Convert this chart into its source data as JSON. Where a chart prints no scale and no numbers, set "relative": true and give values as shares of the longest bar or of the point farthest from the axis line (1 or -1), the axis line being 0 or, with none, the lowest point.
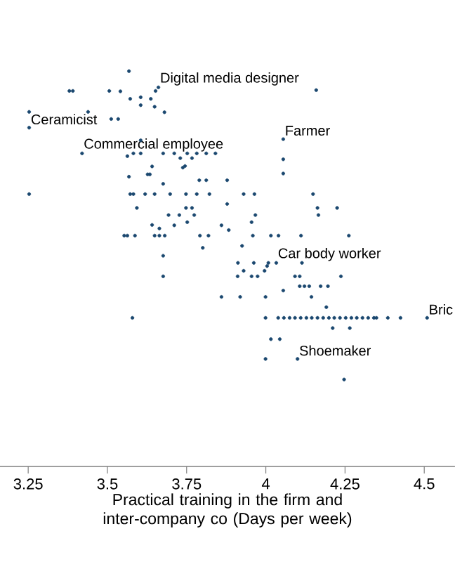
{
  "chart_data": {
    "type": "scatter",
    "relative": true,
    "xlabel": "Practical training in the firm and inter-company co (Days per week)",
    "xlim": [
      3.161,
      4.597
    ],
    "xticks": [
      3.25,
      3.5,
      3.75,
      4,
      4.25,
      4.5
    ],
    "color": "#1a476f",
    "marker": "circle",
    "x": [
      3.568,
      3.38,
      3.391,
      3.506,
      3.541,
      3.572,
      3.605,
      3.637,
      3.652,
      3.661,
      3.605,
      3.649,
      3.68,
      4.159,
      3.253,
      3.253,
      3.439,
      3.512,
      3.534,
      4.055,
      3.42,
      3.605,
      3.563,
      3.582,
      3.605,
      3.676,
      3.711,
      3.73,
      3.752,
      3.767,
      3.782,
      3.812,
      3.841,
      4.055,
      3.641,
      3.634,
      3.627,
      3.745,
      3.738,
      3.568,
      4.055,
      3.79,
      3.812,
      3.878,
      3.676,
      3.253,
      3.572,
      3.582,
      3.619,
      3.649,
      3.698,
      3.748,
      3.782,
      3.822,
      3.93,
      3.964,
      4.149,
      3.593,
      3.878,
      3.693,
      3.727,
      3.748,
      3.767,
      3.774,
      3.967,
      3.955,
      4.163,
      4.166,
      4.225,
      3.711,
      3.752,
      3.641,
      3.664,
      3.86,
      3.883,
      3.553,
      3.563,
      3.587,
      3.649,
      3.664,
      3.681,
      3.792,
      3.819,
      3.801,
      3.959,
      4.016,
      4.04,
      4.111,
      4.262,
      3.925,
      3.676,
      3.912,
      3.962,
      4.008,
      4.004,
      4.033,
      4.114,
      3.93,
      3.996,
      3.911,
      3.955,
      3.974,
      3.676,
      4.092,
      4.107,
      4.237,
      4.107,
      4.122,
      4.137,
      4.173,
      4.196,
      4.055,
      3.86,
      3.919,
      3.999,
      4.144,
      4.191,
      3.579,
      3.999,
      4.039,
      4.057,
      4.075,
      4.092,
      4.11,
      4.128,
      4.145,
      4.163,
      4.181,
      4.199,
      4.216,
      4.234,
      4.252,
      4.27,
      4.287,
      4.305,
      4.323,
      4.341,
      4.349,
      4.385,
      4.425,
      4.509,
      4.211,
      4.265,
      4.016,
      4.044,
      3.999,
      4.1,
      4.247
    ],
    "values": [
      1.0,
      0.95,
      0.95,
      0.95,
      0.949,
      0.93,
      0.934,
      0.93,
      0.95,
      0.959,
      0.914,
      0.91,
      0.896,
      0.952,
      0.897,
      0.857,
      0.897,
      0.879,
      0.879,
      0.828,
      0.792,
      0.825,
      0.785,
      0.792,
      0.792,
      0.792,
      0.792,
      0.78,
      0.792,
      0.78,
      0.792,
      0.792,
      0.792,
      0.777,
      0.759,
      0.739,
      0.739,
      0.76,
      0.756,
      0.733,
      0.741,
      0.724,
      0.724,
      0.724,
      0.715,
      0.689,
      0.689,
      0.689,
      0.689,
      0.689,
      0.689,
      0.689,
      0.689,
      0.689,
      0.689,
      0.689,
      0.689,
      0.654,
      0.664,
      0.636,
      0.636,
      0.654,
      0.654,
      0.636,
      0.636,
      0.618,
      0.654,
      0.636,
      0.654,
      0.61,
      0.618,
      0.611,
      0.602,
      0.61,
      0.598,
      0.584,
      0.584,
      0.584,
      0.584,
      0.584,
      0.584,
      0.584,
      0.584,
      0.553,
      0.584,
      0.584,
      0.584,
      0.584,
      0.584,
      0.558,
      0.533,
      0.515,
      0.515,
      0.515,
      0.507,
      0.515,
      0.515,
      0.495,
      0.495,
      0.481,
      0.481,
      0.481,
      0.481,
      0.481,
      0.481,
      0.481,
      0.456,
      0.456,
      0.456,
      0.456,
      0.456,
      0.445,
      0.429,
      0.429,
      0.429,
      0.429,
      0.403,
      0.376,
      0.376,
      0.376,
      0.376,
      0.376,
      0.376,
      0.376,
      0.376,
      0.376,
      0.376,
      0.376,
      0.376,
      0.376,
      0.376,
      0.376,
      0.376,
      0.376,
      0.376,
      0.376,
      0.376,
      0.376,
      0.376,
      0.376,
      0.376,
      0.35,
      0.35,
      0.322,
      0.322,
      0.272,
      0.272,
      0.22
    ],
    "annotations": [
      {
        "text": "Digital media designer",
        "x": 3.661,
        "y": 0.959
      },
      {
        "text": "Ceramicist",
        "x": 3.253,
        "y": 0.857
      },
      {
        "text": "Commercial employee",
        "x": 3.42,
        "y": 0.792
      },
      {
        "text": "Farmer",
        "x": 4.055,
        "y": 0.828
      },
      {
        "text": "Car body worker",
        "x": 4.033,
        "y": 0.515
      },
      {
        "text": "Bric",
        "x": 4.509,
        "y": 0.376
      },
      {
        "text": "Shoemaker",
        "x": 4.1,
        "y": 0.272
      }
    ]
  }
}
